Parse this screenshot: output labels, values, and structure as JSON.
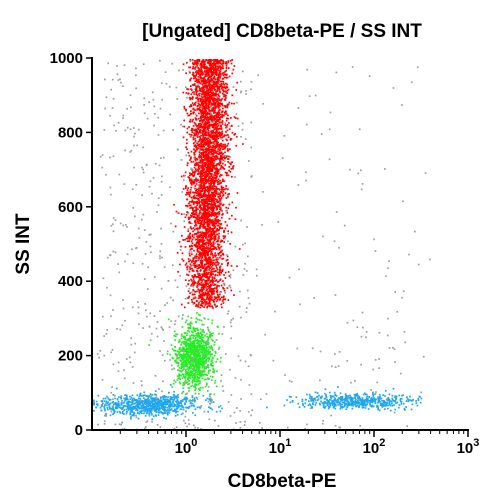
{
  "chart_data": {
    "type": "scatter",
    "title": "[Ungated] CD8beta-PE / SS INT",
    "xlabel": "CD8beta-PE",
    "ylabel": "SS INT",
    "x_scale": "log",
    "xlim": [
      0.1,
      1000
    ],
    "ylim": [
      0,
      1000
    ],
    "x_ticks": [
      {
        "value": 1,
        "base": "10",
        "exp": "0"
      },
      {
        "value": 10,
        "base": "10",
        "exp": "1"
      },
      {
        "value": 100,
        "base": "10",
        "exp": "2"
      },
      {
        "value": 1000,
        "base": "10",
        "exp": "3"
      }
    ],
    "y_ticks": [
      0,
      200,
      400,
      600,
      800,
      1000
    ],
    "grid": false,
    "legend": "none",
    "series": [
      {
        "color": "#ff0000",
        "point_count": 4000,
        "clusters": [
          {
            "x_center": 1.6,
            "y_range": [
              330,
              1000
            ],
            "shape": "vertical-band"
          }
        ]
      },
      {
        "color": "#22ee22",
        "point_count": 1000,
        "clusters": [
          {
            "x_center": 1.2,
            "y_center": 200,
            "y_range": [
              120,
              320
            ]
          }
        ]
      },
      {
        "color": "#1ea7ee",
        "point_count": 1300,
        "clusters": [
          {
            "x_center": 0.4,
            "y_center": 70,
            "y_range": [
              40,
              110
            ]
          },
          {
            "x_center": 60,
            "y_center": 80,
            "y_range": [
              55,
              105
            ]
          }
        ]
      },
      {
        "color": "#9aa0a0",
        "point_count": 700,
        "clusters": [
          {
            "x_range": [
              0.1,
              1000
            ],
            "y_range": [
              0,
              1000
            ],
            "shape": "background-noise"
          }
        ]
      }
    ]
  }
}
